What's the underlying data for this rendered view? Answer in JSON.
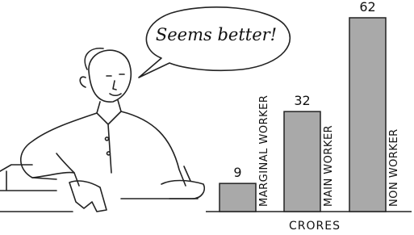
{
  "chart_data": {
    "type": "bar",
    "annotation": "Seems better!",
    "x_label": "CRORES",
    "categories": [
      "MARGINAL WORKER",
      "MAIN WORKER",
      "NON WORKER"
    ],
    "values": [
      9,
      32,
      62
    ],
    "color": "#a9a9a9"
  }
}
